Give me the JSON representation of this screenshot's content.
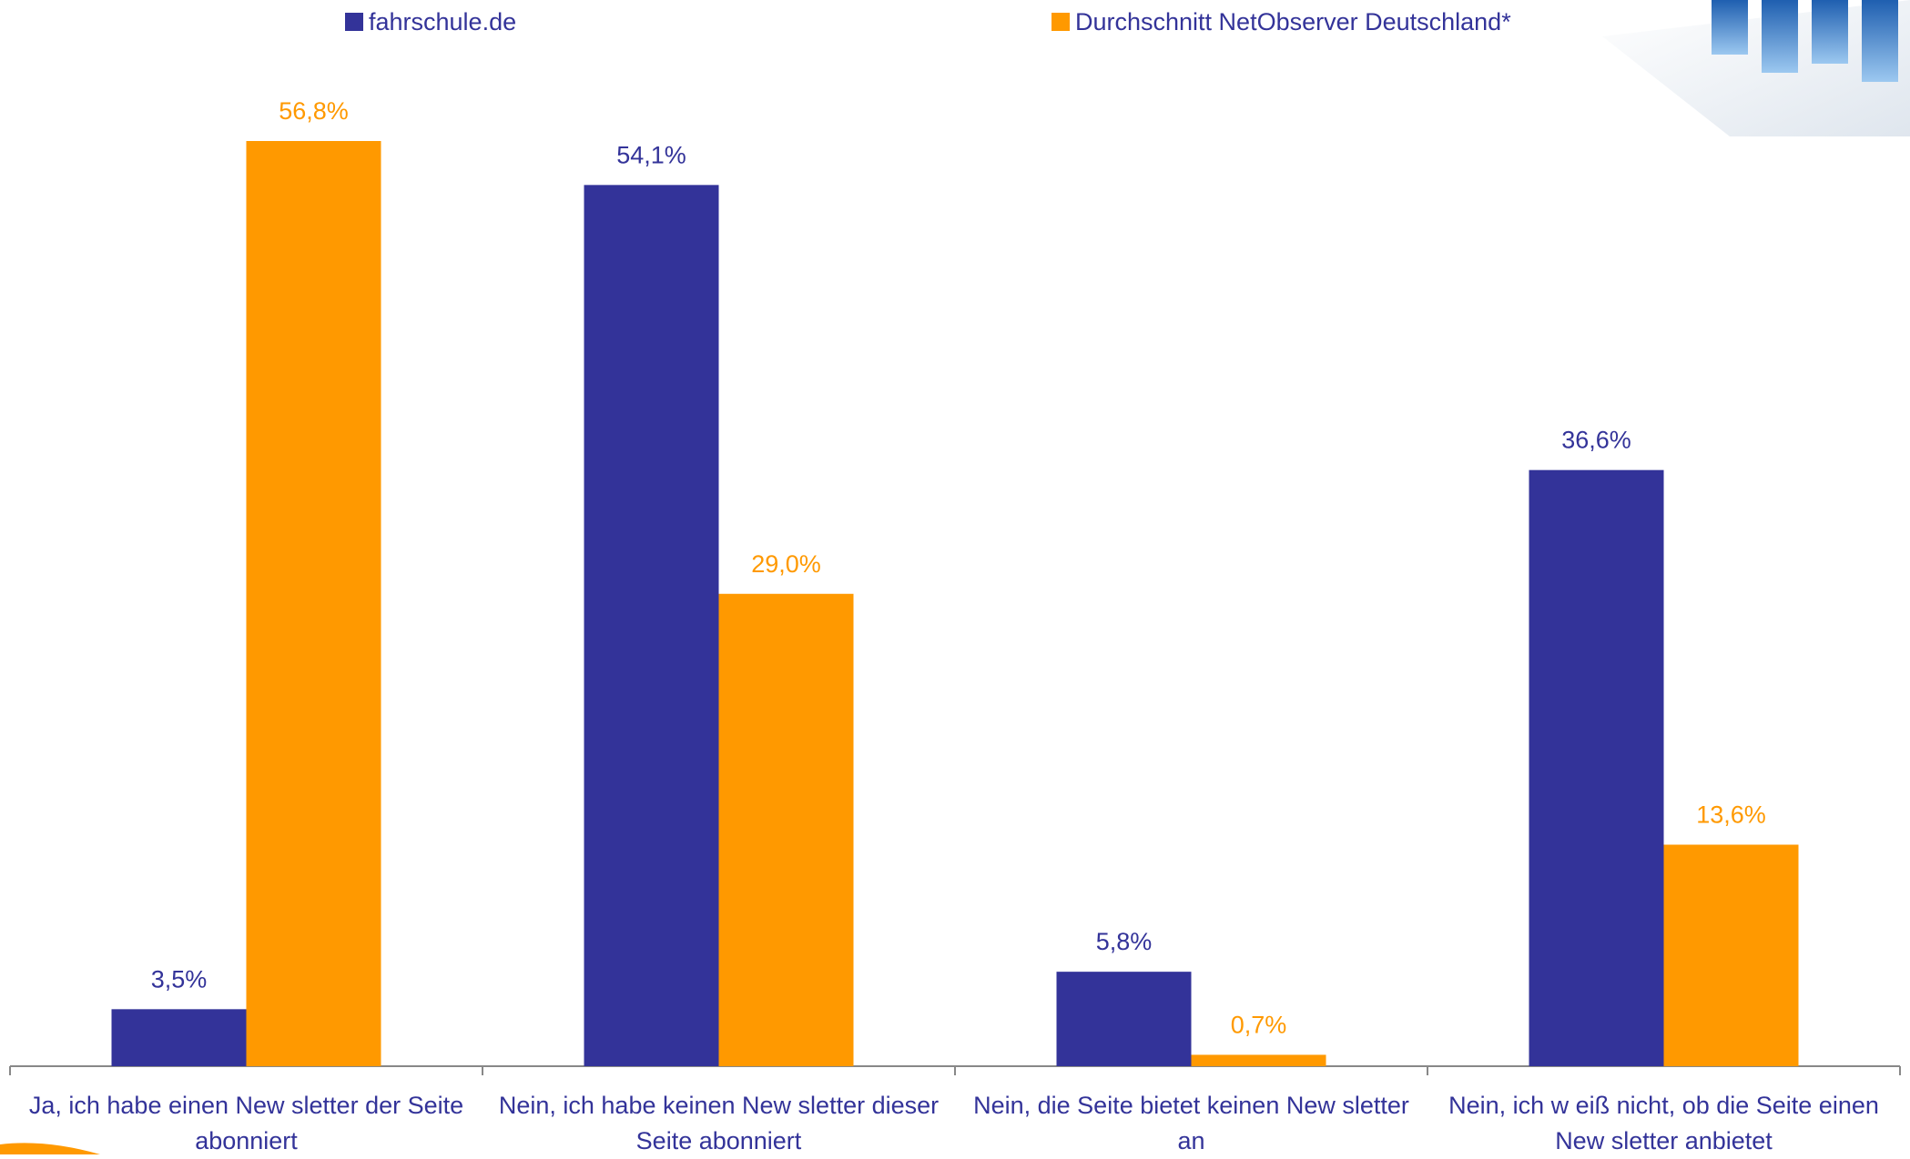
{
  "chart_data": {
    "type": "bar",
    "categories": [
      "Ja, ich habe einen New sletter der Seite abonniert",
      "Nein, ich habe keinen New sletter dieser Seite abonniert",
      "Nein, die Seite bietet keinen New sletter an",
      "Nein, ich w eiß nicht, ob die Seite einen New sletter anbietet"
    ],
    "series": [
      {
        "name": "fahrschule.de",
        "color": "#333399",
        "values": [
          3.5,
          54.1,
          5.8,
          36.6
        ],
        "value_labels": [
          "3,5%",
          "54,1%",
          "5,8%",
          "36,6%"
        ]
      },
      {
        "name": "Durchschnitt NetObserver Deutschland*",
        "color": "#ff9900",
        "values": [
          56.8,
          29.0,
          0.7,
          13.6
        ],
        "value_labels": [
          "56,8%",
          "29,0%",
          "0,7%",
          "13,6%"
        ]
      }
    ],
    "legend": "top"
  }
}
